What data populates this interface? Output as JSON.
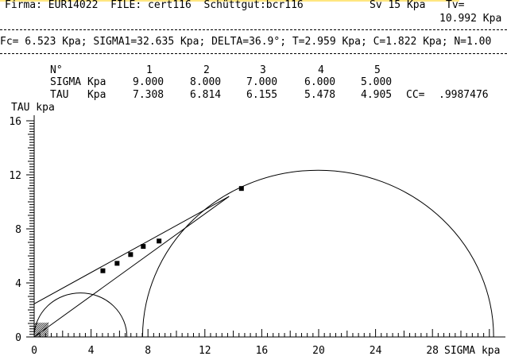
{
  "header": {
    "firma_label": "Firma:",
    "firma_value": "EUR14022",
    "file_label": "FILE:",
    "file_value": "cert116",
    "material_label": "Schüttgut:",
    "material_value": "bcr116",
    "sv_label": "Sv",
    "sv_value": "15",
    "sv_unit": "Kpa",
    "tv_label": "Tv=",
    "tv_value": "10.992",
    "tv_unit": "Kpa"
  },
  "results_line": "Fc= 6.523 Kpa; SIGMA1=32.635 Kpa; DELTA=36.9°; T=2.959 Kpa; C=1.822 Kpa; N=1.00",
  "table": {
    "n_label": "N°",
    "sigma_label": "SIGMA Kpa",
    "tau_label": "TAU   Kpa",
    "columns": [
      "1",
      "2",
      "3",
      "4",
      "5"
    ],
    "sigma_values": [
      "9.000",
      "8.000",
      "7.000",
      "6.000",
      "5.000"
    ],
    "tau_values": [
      "7.308",
      "6.814",
      "6.155",
      "5.478",
      "4.905"
    ],
    "cc_label": "CC=",
    "cc_value": ".9987476"
  },
  "chart_data": {
    "type": "scatter",
    "title": "",
    "ylabel": "TAU kpa",
    "xlabel": "SIGMA kpa",
    "xlim": [
      0,
      32
    ],
    "ylim": [
      0,
      16
    ],
    "x_ticks": [
      "0",
      "4",
      "8",
      "12",
      "16",
      "20",
      "24",
      "28"
    ],
    "y_ticks": [
      "0",
      "4",
      "8",
      "12",
      "16"
    ],
    "points": [
      {
        "x": 4.83,
        "y": 4.9
      },
      {
        "x": 5.83,
        "y": 5.45
      },
      {
        "x": 6.78,
        "y": 6.1
      },
      {
        "x": 7.67,
        "y": 6.7
      },
      {
        "x": 8.78,
        "y": 7.1
      },
      {
        "x": 14.57,
        "y": 10.99
      }
    ],
    "yield_locus": {
      "x1": 0,
      "y1": 2.45,
      "x2": 13.7,
      "y2": 10.4
    },
    "tangent_line": {
      "x1": 0,
      "y1": 0,
      "x2": 13.7,
      "y2": 10.4
    },
    "small_circle": {
      "center": 3.26,
      "radius": 3.26
    },
    "large_circle": {
      "center": 19.96,
      "radius": 12.34
    }
  }
}
